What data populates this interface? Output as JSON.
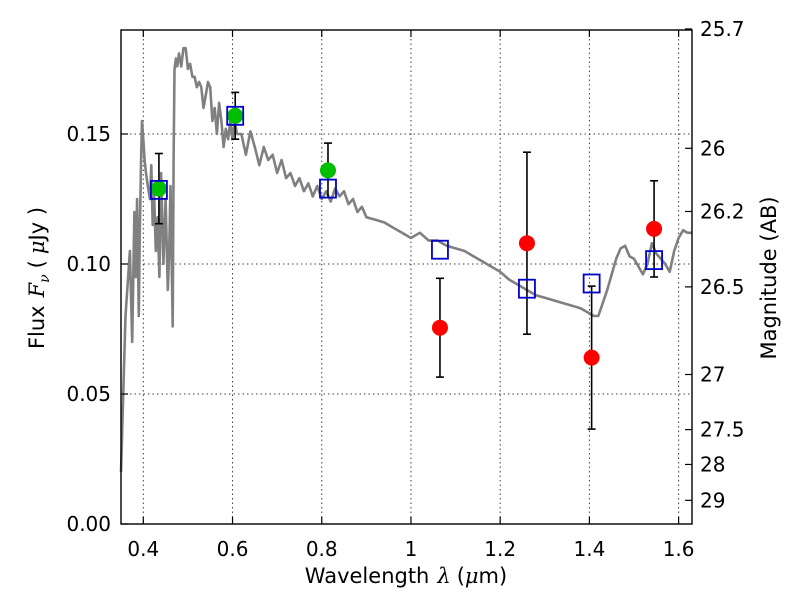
{
  "chart_data": {
    "type": "scatter",
    "xlabel_text": "Wavelength",
    "xlabel_symbol": "λ",
    "xlabel_unit_open": "(",
    "xlabel_unit_mu": "μ",
    "xlabel_unit_rest": "m)",
    "ylabel_text": "Flux",
    "ylabel_symbol": "F",
    "ylabel_sub": "ν",
    "ylabel_unit_open": "(",
    "ylabel_unit_mu": "μ",
    "ylabel_unit_rest": "Jy )",
    "y2label": "Magnitude (AB)",
    "xlim": [
      0.35,
      1.63
    ],
    "ylim": [
      0.0,
      0.19
    ],
    "xticks": [
      {
        "value": 0.4,
        "label": "0.4"
      },
      {
        "value": 0.6,
        "label": "0.6"
      },
      {
        "value": 0.8,
        "label": "0.8"
      },
      {
        "value": 1.0,
        "label": "1"
      },
      {
        "value": 1.2,
        "label": "1.2"
      },
      {
        "value": 1.4,
        "label": "1.4"
      },
      {
        "value": 1.6,
        "label": "1.6"
      }
    ],
    "yticks": [
      {
        "value": 0.0,
        "label": "0.00"
      },
      {
        "value": 0.05,
        "label": "0.05"
      },
      {
        "value": 0.1,
        "label": "0.10"
      },
      {
        "value": 0.15,
        "label": "0.15"
      }
    ],
    "y2ticks": [
      {
        "flux": 0.1904,
        "label": "25.7"
      },
      {
        "flux": 0.1445,
        "label": "26"
      },
      {
        "flux": 0.1202,
        "label": "26.2"
      },
      {
        "flux": 0.0912,
        "label": "26.5"
      },
      {
        "flux": 0.0575,
        "label": "27"
      },
      {
        "flux": 0.0363,
        "label": "27.5"
      },
      {
        "flux": 0.0229,
        "label": "28"
      },
      {
        "flux": 0.0091,
        "label": "29"
      }
    ],
    "series": [
      {
        "name": "model-sed",
        "kind": "line",
        "color": "#808080",
        "x": [
          0.35,
          0.36,
          0.37,
          0.375,
          0.38,
          0.383,
          0.386,
          0.39,
          0.392,
          0.395,
          0.397,
          0.4,
          0.403,
          0.406,
          0.41,
          0.415,
          0.418,
          0.421,
          0.424,
          0.428,
          0.432,
          0.436,
          0.44,
          0.445,
          0.45,
          0.455,
          0.458,
          0.461,
          0.464,
          0.466,
          0.468,
          0.47,
          0.473,
          0.476,
          0.48,
          0.485,
          0.49,
          0.495,
          0.5,
          0.505,
          0.51,
          0.515,
          0.52,
          0.525,
          0.53,
          0.535,
          0.54,
          0.545,
          0.55,
          0.555,
          0.56,
          0.565,
          0.57,
          0.575,
          0.58,
          0.585,
          0.59,
          0.595,
          0.6,
          0.605,
          0.61,
          0.62,
          0.63,
          0.64,
          0.65,
          0.66,
          0.67,
          0.68,
          0.69,
          0.7,
          0.71,
          0.72,
          0.73,
          0.74,
          0.75,
          0.76,
          0.77,
          0.78,
          0.79,
          0.8,
          0.81,
          0.82,
          0.83,
          0.84,
          0.85,
          0.86,
          0.87,
          0.88,
          0.89,
          0.9,
          0.92,
          0.94,
          0.96,
          0.98,
          1.0,
          1.02,
          1.04,
          1.06,
          1.08,
          1.1,
          1.12,
          1.14,
          1.16,
          1.18,
          1.2,
          1.22,
          1.24,
          1.26,
          1.28,
          1.3,
          1.32,
          1.34,
          1.36,
          1.38,
          1.4,
          1.41,
          1.42,
          1.43,
          1.44,
          1.45,
          1.46,
          1.47,
          1.48,
          1.49,
          1.5,
          1.51,
          1.52,
          1.53,
          1.54,
          1.55,
          1.56,
          1.57,
          1.58,
          1.59,
          1.6,
          1.61,
          1.62,
          1.63
        ],
        "y": [
          0.02,
          0.08,
          0.105,
          0.07,
          0.12,
          0.095,
          0.125,
          0.08,
          0.11,
          0.14,
          0.155,
          0.148,
          0.14,
          0.135,
          0.13,
          0.125,
          0.138,
          0.115,
          0.128,
          0.105,
          0.118,
          0.095,
          0.135,
          0.1,
          0.125,
          0.09,
          0.105,
          0.13,
          0.095,
          0.076,
          0.14,
          0.175,
          0.179,
          0.176,
          0.181,
          0.176,
          0.183,
          0.183,
          0.175,
          0.177,
          0.172,
          0.172,
          0.168,
          0.17,
          0.168,
          0.16,
          0.165,
          0.17,
          0.168,
          0.155,
          0.16,
          0.15,
          0.162,
          0.155,
          0.145,
          0.152,
          0.148,
          0.155,
          0.148,
          0.155,
          0.15,
          0.15,
          0.142,
          0.151,
          0.145,
          0.138,
          0.145,
          0.14,
          0.142,
          0.135,
          0.14,
          0.133,
          0.135,
          0.13,
          0.133,
          0.128,
          0.131,
          0.126,
          0.13,
          0.125,
          0.128,
          0.124,
          0.129,
          0.126,
          0.128,
          0.123,
          0.125,
          0.12,
          0.122,
          0.118,
          0.117,
          0.116,
          0.114,
          0.112,
          0.11,
          0.112,
          0.109,
          0.109,
          0.107,
          0.106,
          0.105,
          0.103,
          0.101,
          0.099,
          0.097,
          0.094,
          0.092,
          0.09,
          0.088,
          0.087,
          0.086,
          0.085,
          0.084,
          0.083,
          0.081,
          0.08,
          0.08,
          0.085,
          0.09,
          0.096,
          0.102,
          0.106,
          0.107,
          0.103,
          0.102,
          0.099,
          0.096,
          0.1,
          0.108,
          0.104,
          0.102,
          0.1,
          0.097,
          0.105,
          0.11,
          0.113,
          0.112,
          0.112
        ]
      },
      {
        "name": "observed-optical",
        "kind": "points",
        "marker": "circle",
        "color": "#00bf00",
        "points": [
          {
            "x": 0.435,
            "y": 0.129,
            "err": 0.0135
          },
          {
            "x": 0.606,
            "y": 0.157,
            "err": 0.009
          },
          {
            "x": 0.814,
            "y": 0.136,
            "err": 0.0105
          }
        ]
      },
      {
        "name": "observed-infrared",
        "kind": "points",
        "marker": "circle",
        "color": "#ff0000",
        "points": [
          {
            "x": 1.065,
            "y": 0.0755,
            "err": 0.019
          },
          {
            "x": 1.26,
            "y": 0.108,
            "err": 0.035
          },
          {
            "x": 1.405,
            "y": 0.064,
            "err": 0.0275
          },
          {
            "x": 1.545,
            "y": 0.1135,
            "err": 0.0185
          }
        ]
      },
      {
        "name": "model-photometry",
        "kind": "points",
        "marker": "square",
        "color": "#0000cc",
        "points": [
          {
            "x": 0.435,
            "y": 0.1285
          },
          {
            "x": 0.606,
            "y": 0.157
          },
          {
            "x": 0.814,
            "y": 0.129
          },
          {
            "x": 1.065,
            "y": 0.1055
          },
          {
            "x": 1.26,
            "y": 0.0905
          },
          {
            "x": 1.405,
            "y": 0.0925
          },
          {
            "x": 1.545,
            "y": 0.1015
          }
        ]
      }
    ]
  }
}
